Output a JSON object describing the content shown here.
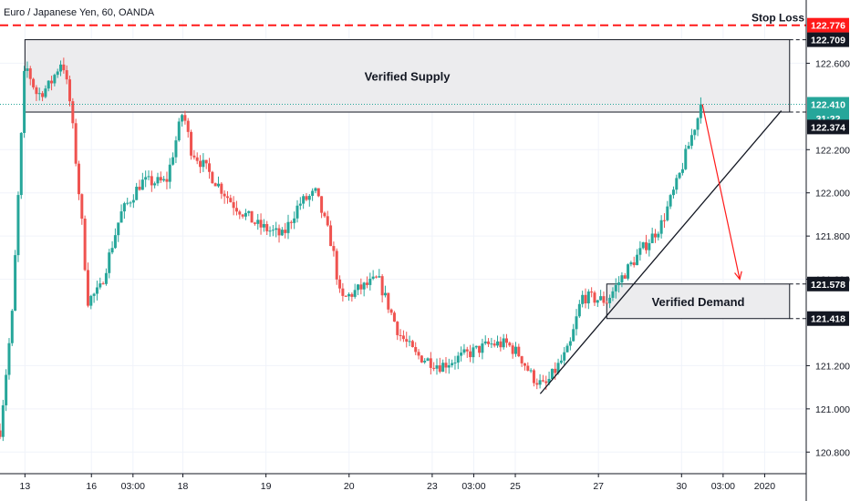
{
  "chart_data": {
    "type": "candlestick",
    "title": "Euro / Japanese Yen, 60, OANDA",
    "y_axis": {
      "min": 120.7,
      "max": 122.8,
      "position": "right",
      "ticks": [
        120.8,
        121.0,
        121.2,
        121.6,
        121.8,
        122.0,
        122.2,
        122.6
      ],
      "tick_labels": [
        "120.800",
        "121.000",
        "121.200",
        "121.600",
        "121.800",
        "122.000",
        "122.200",
        "122.600"
      ]
    },
    "x_axis": {
      "ticks": [
        {
          "label": "13",
          "pos": 0.3
        },
        {
          "label": "16",
          "pos": 1.1
        },
        {
          "label": "03:00",
          "pos": 1.6
        },
        {
          "label": "18",
          "pos": 2.2
        },
        {
          "label": "19",
          "pos": 3.2
        },
        {
          "label": "20",
          "pos": 4.2
        },
        {
          "label": "23",
          "pos": 5.2
        },
        {
          "label": "03:00",
          "pos": 5.7
        },
        {
          "label": "25",
          "pos": 6.2
        },
        {
          "label": "27",
          "pos": 7.2
        },
        {
          "label": "30",
          "pos": 8.2
        },
        {
          "label": "03:00",
          "pos": 8.7
        },
        {
          "label": "2020",
          "pos": 9.2
        }
      ]
    },
    "price_path": [
      [
        0,
        120.9
      ],
      [
        0.15,
        121.45
      ],
      [
        0.3,
        122.6
      ],
      [
        0.45,
        122.45
      ],
      [
        0.6,
        122.5
      ],
      [
        0.75,
        122.62
      ],
      [
        0.85,
        122.4
      ],
      [
        1.0,
        121.8
      ],
      [
        1.05,
        121.5
      ],
      [
        1.2,
        121.55
      ],
      [
        1.45,
        121.9
      ],
      [
        1.7,
        122.05
      ],
      [
        2.0,
        122.05
      ],
      [
        2.2,
        122.38
      ],
      [
        2.3,
        122.2
      ],
      [
        2.5,
        122.1
      ],
      [
        2.8,
        121.95
      ],
      [
        3.1,
        121.85
      ],
      [
        3.4,
        121.8
      ],
      [
        3.6,
        121.95
      ],
      [
        3.8,
        122.0
      ],
      [
        4.0,
        121.75
      ],
      [
        4.1,
        121.5
      ],
      [
        4.3,
        121.55
      ],
      [
        4.55,
        121.6
      ],
      [
        4.8,
        121.35
      ],
      [
        5.0,
        121.25
      ],
      [
        5.3,
        121.2
      ],
      [
        5.6,
        121.25
      ],
      [
        5.9,
        121.3
      ],
      [
        6.1,
        121.3
      ],
      [
        6.25,
        121.25
      ],
      [
        6.4,
        121.15
      ],
      [
        6.55,
        121.1
      ],
      [
        6.85,
        121.28
      ],
      [
        7.0,
        121.52
      ],
      [
        7.3,
        121.5
      ],
      [
        7.5,
        121.62
      ],
      [
        7.75,
        121.75
      ],
      [
        7.95,
        121.85
      ],
      [
        8.15,
        122.05
      ],
      [
        8.35,
        122.3
      ],
      [
        8.45,
        122.41
      ]
    ],
    "annotations": {
      "supply_zone": {
        "label": "Verified Supply",
        "top": 122.709,
        "bottom": 122.374,
        "x_start": 0.3,
        "x_end": 9.5
      },
      "demand_zone": {
        "label": "Verified Demand",
        "top": 121.578,
        "bottom": 121.418,
        "x_start": 7.3,
        "x_end": 9.5
      },
      "stop_loss": {
        "label": "Stop Loss",
        "price": 122.776
      },
      "trendline": {
        "x1": 6.5,
        "y1": 121.07,
        "x2": 9.4,
        "y2": 122.38
      },
      "arrow": {
        "x1": 8.45,
        "y1": 122.41,
        "x2": 8.9,
        "y2": 121.6
      },
      "current_price": 122.41,
      "price_tags": [
        {
          "value": "122.776",
          "price": 122.776,
          "color": "#ff1a1a"
        },
        {
          "value": "122.709",
          "price": 122.709,
          "color": "#131722"
        },
        {
          "value": "122.410",
          "price": 122.41,
          "color": "#26a69a"
        },
        {
          "value": "31:22",
          "price": 122.345,
          "color": "#26a69a"
        },
        {
          "value": "122.374",
          "price": 122.305,
          "color": "#131722"
        },
        {
          "value": "121.578",
          "price": 121.578,
          "color": "#131722"
        },
        {
          "value": "121.418",
          "price": 121.418,
          "color": "#131722"
        }
      ]
    },
    "colors": {
      "up": "#26a69a",
      "down": "#ef5350",
      "stop": "#ff1a1a",
      "axis": "#131722",
      "grid": "#f0f3fa"
    }
  }
}
